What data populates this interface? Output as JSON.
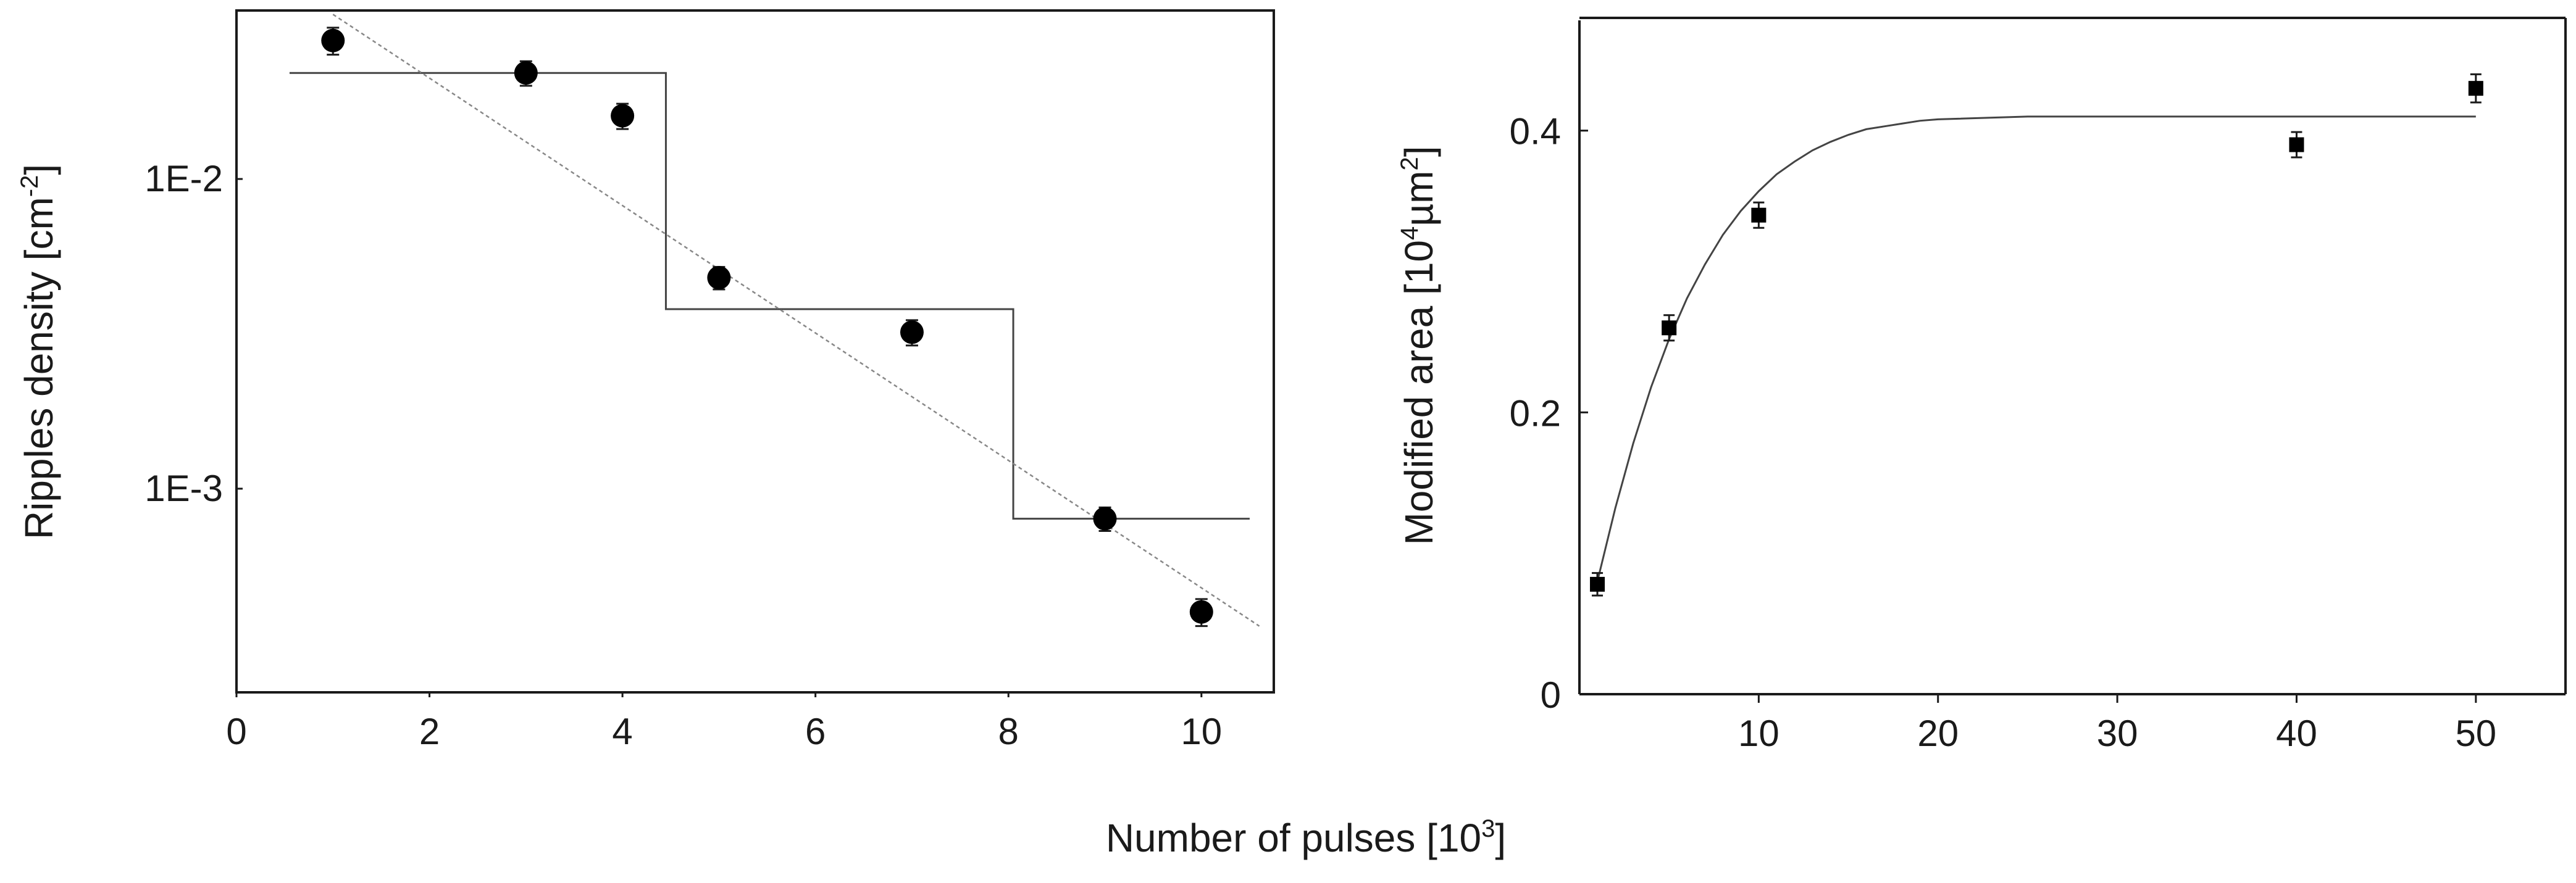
{
  "chart_data": [
    {
      "type": "scatter",
      "title": "",
      "ylabel": "Ripples density [cm",
      "ylabel_sup": "-2",
      "ylabel_end": "]",
      "y_scale": "log",
      "x_ticks": [
        0,
        2,
        4,
        6,
        8,
        10
      ],
      "x_tick_labels": [
        "0",
        "2",
        "4",
        "6",
        "8",
        "10"
      ],
      "xlim": [
        0,
        10.75
      ],
      "ylim": [
        0.00022,
        0.035
      ],
      "y_ticks": [
        0.01,
        0.001
      ],
      "y_tick_labels": [
        "1E-2",
        "1E-3"
      ],
      "series": [
        {
          "type": "scatter",
          "marker": "circle",
          "x": [
            1,
            3,
            4,
            5,
            7,
            9,
            10
          ],
          "y": [
            0.028,
            0.022,
            0.016,
            0.0048,
            0.0032,
            0.0008,
            0.0004
          ],
          "err": [
            0.0028,
            0.002,
            0.0015,
            0.0004,
            0.0003,
            7e-05,
            4e-05
          ]
        },
        {
          "type": "step",
          "x": [
            0.55,
            4.45,
            4.45,
            8.05,
            8.05,
            10.5
          ],
          "y": [
            0.022,
            0.022,
            0.0038,
            0.0038,
            0.0008,
            0.0008
          ]
        },
        {
          "type": "dashed-fit",
          "x": [
            1.0,
            10.6
          ],
          "y": [
            0.034,
            0.00036
          ]
        }
      ]
    },
    {
      "type": "scatter",
      "title": "",
      "ylabel": "Modified area [10",
      "ylabel_sup1": "4",
      "ylabel_mid": "µm",
      "ylabel_sup2": "2",
      "ylabel_end": "]",
      "xlim": [
        0,
        55
      ],
      "ylim": [
        0,
        0.48
      ],
      "x_ticks": [
        10,
        20,
        30,
        40,
        50
      ],
      "x_tick_labels": [
        "10",
        "20",
        "30",
        "40",
        "50"
      ],
      "y_ticks": [
        0,
        0.2,
        0.4
      ],
      "y_tick_labels": [
        "0",
        "0.2",
        "0.4"
      ],
      "series": [
        {
          "type": "scatter",
          "marker": "square",
          "x": [
            1,
            5,
            10,
            40,
            50
          ],
          "y": [
            0.078,
            0.26,
            0.34,
            0.39,
            0.43
          ],
          "err": [
            0.008,
            0.009,
            0.009,
            0.009,
            0.01
          ]
        },
        {
          "type": "curve",
          "x": [
            1,
            2,
            3,
            4,
            5,
            6,
            7,
            8,
            9,
            10,
            11,
            12,
            13,
            14,
            15,
            16,
            17,
            18,
            19,
            20,
            25,
            30,
            35,
            40,
            45,
            50
          ],
          "y": [
            0.08,
            0.132,
            0.178,
            0.218,
            0.252,
            0.281,
            0.305,
            0.326,
            0.343,
            0.357,
            0.369,
            0.378,
            0.386,
            0.392,
            0.397,
            0.401,
            0.403,
            0.405,
            0.407,
            0.408,
            0.41,
            0.41,
            0.41,
            0.41,
            0.41,
            0.41
          ]
        }
      ]
    }
  ],
  "shared_xlabel": "Number of pulses [10",
  "shared_xlabel_sup": "3",
  "shared_xlabel_end": "]",
  "colors": {
    "ink": "#1a1a1a",
    "line": "#444444",
    "fit": "#888888"
  }
}
